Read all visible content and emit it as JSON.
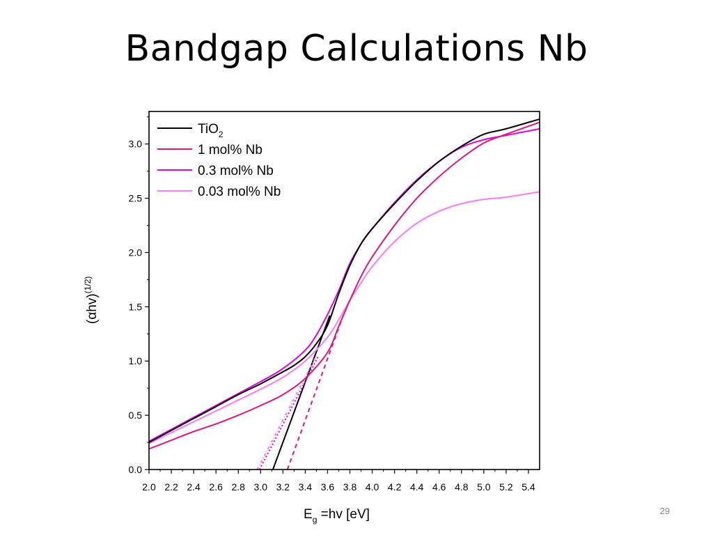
{
  "slide": {
    "title": "Bandgap Calculations Nb",
    "page_number": "29"
  },
  "chart_data": {
    "type": "line",
    "title": "",
    "xlabel": "E",
    "xlabel_sub": "g",
    "xlabel_rest": " =hv [eV]",
    "ylabel": "(αhv)",
    "ylabel_sup": "(1/2)",
    "xlim": [
      2.0,
      5.5
    ],
    "ylim": [
      0.0,
      3.3
    ],
    "x_ticks": [
      2.0,
      2.2,
      2.4,
      2.6,
      2.8,
      3.0,
      3.2,
      3.4,
      3.6,
      3.8,
      4.0,
      4.2,
      4.4,
      4.6,
      4.8,
      5.0,
      5.2,
      5.4
    ],
    "x_tick_labels": [
      "2.0",
      "2.2",
      "2.4",
      "2.6",
      "2.8",
      "3.0",
      "3.2",
      "3.4",
      "3.6",
      "3.8",
      "4.0",
      "4.2",
      "4.4",
      "4.6",
      "4.8",
      "5.0",
      "5.2",
      "5.4"
    ],
    "y_ticks": [
      0.0,
      0.5,
      1.0,
      1.5,
      2.0,
      2.5,
      3.0
    ],
    "y_tick_labels": [
      "0.0",
      "0.5",
      "1.0",
      "1.5",
      "2.0",
      "2.5",
      "3.0"
    ],
    "grid": false,
    "legend_position": "top-left",
    "series": [
      {
        "name": "TiO",
        "name_sub": "2",
        "color": "#000000",
        "x": [
          2.0,
          2.2,
          2.4,
          2.6,
          2.8,
          3.0,
          3.2,
          3.3,
          3.4,
          3.5,
          3.6,
          3.7,
          3.8,
          3.9,
          4.0,
          4.2,
          4.4,
          4.6,
          4.8,
          5.0,
          5.2,
          5.5
        ],
        "y": [
          0.25,
          0.36,
          0.47,
          0.58,
          0.69,
          0.79,
          0.9,
          0.96,
          1.04,
          1.16,
          1.33,
          1.62,
          1.88,
          2.08,
          2.22,
          2.45,
          2.66,
          2.84,
          2.98,
          3.09,
          3.14,
          3.23
        ]
      },
      {
        "name": "1 mol% Nb",
        "color": "#e0157a",
        "x": [
          2.0,
          2.2,
          2.4,
          2.6,
          2.8,
          3.0,
          3.2,
          3.4,
          3.6,
          3.7,
          3.8,
          3.9,
          4.0,
          4.2,
          4.4,
          4.6,
          4.8,
          5.0,
          5.2,
          5.5
        ],
        "y": [
          0.19,
          0.27,
          0.35,
          0.42,
          0.5,
          0.59,
          0.69,
          0.84,
          1.08,
          1.32,
          1.56,
          1.78,
          1.96,
          2.25,
          2.5,
          2.7,
          2.87,
          3.01,
          3.09,
          3.2
        ]
      },
      {
        "name": "0.3 mol% Nb",
        "color": "#e000e0",
        "x": [
          2.0,
          2.2,
          2.4,
          2.6,
          2.8,
          3.0,
          3.2,
          3.4,
          3.5,
          3.6,
          3.7,
          3.8,
          3.9,
          4.0,
          4.2,
          4.4,
          4.6,
          4.8,
          5.0,
          5.2,
          5.5
        ],
        "y": [
          0.26,
          0.37,
          0.48,
          0.59,
          0.7,
          0.81,
          0.93,
          1.1,
          1.24,
          1.43,
          1.65,
          1.9,
          2.08,
          2.22,
          2.46,
          2.67,
          2.84,
          2.97,
          3.04,
          3.08,
          3.14
        ]
      },
      {
        "name": "0.03 mol% Nb",
        "color": "#f77af7",
        "x": [
          2.0,
          2.2,
          2.4,
          2.6,
          2.8,
          3.0,
          3.2,
          3.4,
          3.6,
          3.7,
          3.8,
          3.9,
          4.0,
          4.2,
          4.4,
          4.6,
          4.8,
          5.0,
          5.2,
          5.5
        ],
        "y": [
          0.24,
          0.34,
          0.44,
          0.54,
          0.64,
          0.74,
          0.85,
          1.0,
          1.22,
          1.38,
          1.56,
          1.72,
          1.87,
          2.1,
          2.27,
          2.38,
          2.45,
          2.49,
          2.51,
          2.56
        ]
      }
    ],
    "tangent_lines": [
      {
        "color": "#000000",
        "dash": "",
        "x": [
          3.11,
          3.62
        ],
        "y": [
          0.0,
          1.42
        ]
      },
      {
        "color": "#e0157a",
        "dash": "6,5",
        "x": [
          3.24,
          3.74
        ],
        "y": [
          0.0,
          1.42
        ]
      },
      {
        "color": "#e000e0",
        "dash": "2,3",
        "x": [
          2.99,
          3.52
        ],
        "y": [
          0.0,
          1.05
        ]
      },
      {
        "color": "#f77af7",
        "dash": "4,3,1,3",
        "x": [
          2.97,
          3.5
        ],
        "y": [
          0.0,
          1.05
        ]
      }
    ]
  }
}
